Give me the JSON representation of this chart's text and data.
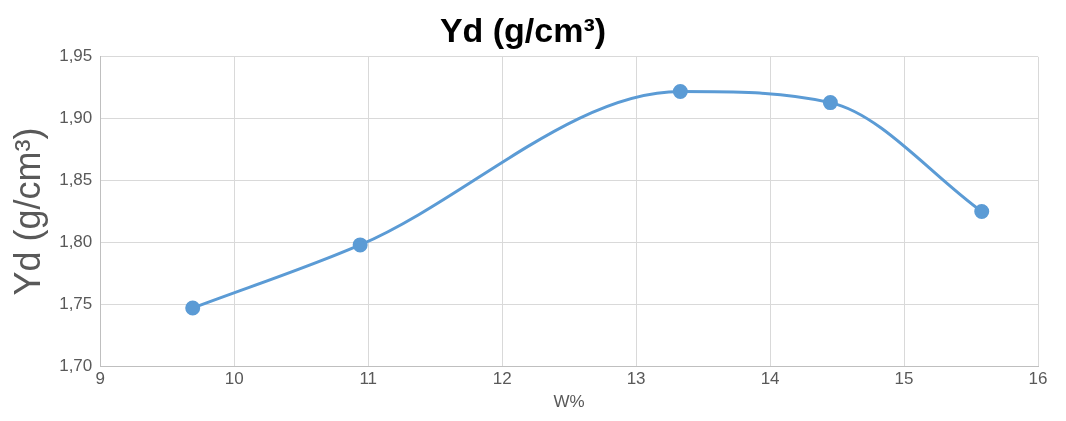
{
  "chart_data": {
    "type": "line",
    "title": "Yd (g/cm³)",
    "xlabel": "W%",
    "ylabel": "Yd (g/cm³)",
    "x": [
      9.69,
      10.94,
      13.33,
      14.45,
      15.58
    ],
    "series": [
      {
        "color": "#5b9bd5",
        "values": [
          1.747,
          1.798,
          1.922,
          1.913,
          1.825
        ]
      }
    ],
    "xlim": [
      9,
      16
    ],
    "xticks": [
      9,
      10,
      11,
      12,
      13,
      14,
      15,
      16
    ],
    "ylim": [
      1.7,
      1.95
    ],
    "yticks": [
      {
        "value": 1.7,
        "label": "1,70"
      },
      {
        "value": 1.75,
        "label": "1,75"
      },
      {
        "value": 1.8,
        "label": "1,80"
      },
      {
        "value": 1.85,
        "label": "1,85"
      },
      {
        "value": 1.9,
        "label": "1,90"
      },
      {
        "value": 1.95,
        "label": "1,95"
      }
    ],
    "grid": true,
    "marker": "circle",
    "line_style": "solid",
    "legend": false
  }
}
